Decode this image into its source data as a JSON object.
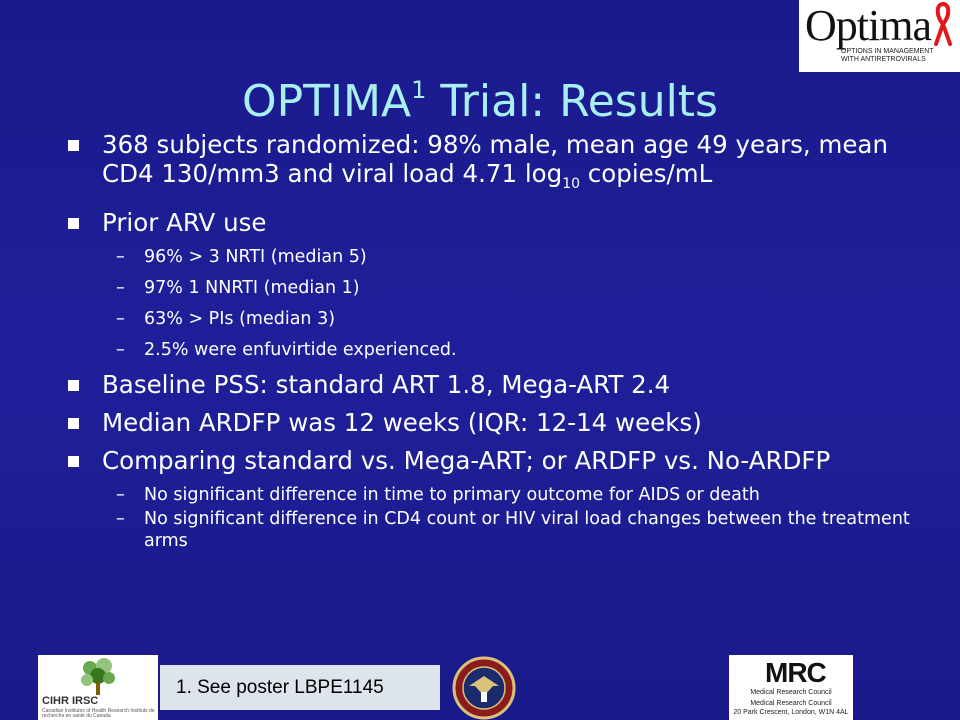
{
  "header_logo": {
    "word": "Optima",
    "tagline_1": "OPTIONS IN MANAGEMENT",
    "tagline_2": "WITH ANTIRETROVIRALS",
    "ribbon_color": "#e2161b"
  },
  "title": {
    "main": "OPTIMA",
    "sup": "1",
    "rest": " Trial: Results"
  },
  "bullets": {
    "b1": {
      "text": "368 subjects randomized: 98% male, mean age 49 years, mean CD4 130/mm3 and viral load 4.71 log",
      "sub": "10",
      "tail": " copies/mL"
    },
    "b2": "Prior ARV use",
    "b2_sub": [
      "96% > 3 NRTI (median 5)",
      "97%  1 NNRTI (median 1)",
      "63% > PIs (median 3)",
      "2.5% were enfuvirtide experienced."
    ],
    "b3": "Baseline PSS: standard ART 1.8, Mega-ART 2.4",
    "b4": "Median ARDFP was 12 weeks (IQR: 12-14 weeks)",
    "b5": "Comparing standard vs. Mega-ART; or ARDFP vs. No-ARDFP",
    "b5_sub": [
      "No significant difference in time to primary outcome for AIDS or death",
      "No significant difference in CD4 count or HIV viral load changes between the treatment arms"
    ],
    "dash": "–"
  },
  "footer": {
    "cihr_name": "CIHR IRSC",
    "cihr_fine": "Canadian Institutes of Health Research   Instituts de recherche en santé du Canada",
    "note": "1. See poster LBPE1145",
    "mrc_big": "MRC",
    "mrc_line1": "Medical Research Council",
    "mrc_line2": "Medical Research Council",
    "mrc_line3": "20 Park Crescent, London, W1N 4AL"
  }
}
